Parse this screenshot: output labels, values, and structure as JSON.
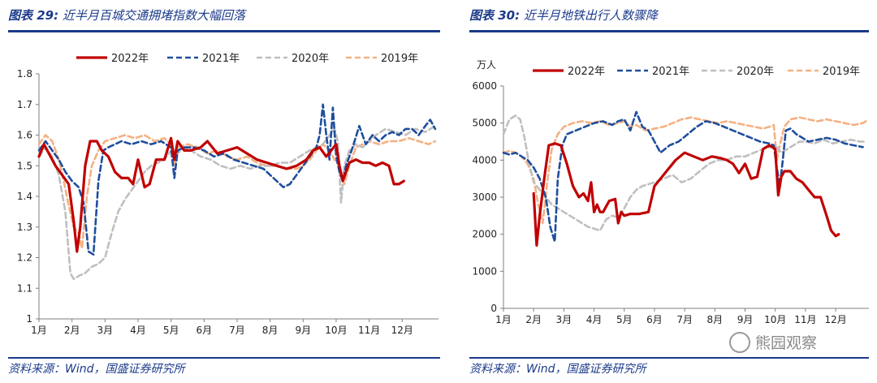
{
  "left": {
    "title_label": "图表 29:",
    "title_text": "近半月百城交通拥堵指数大幅回落",
    "source": "资料来源：Wind，国盛证券研究所",
    "chart_data": {
      "type": "line",
      "title": "近半月百城交通拥堵指数大幅回落",
      "xlabel": "",
      "ylabel": "",
      "ylim": [
        1.0,
        1.8
      ],
      "yticks": [
        "1",
        "1.1",
        "1.2",
        "1.3",
        "1.4",
        "1.5",
        "1.6",
        "1.7",
        "1.8"
      ],
      "ytick_values": [
        1.0,
        1.1,
        1.2,
        1.3,
        1.4,
        1.5,
        1.6,
        1.7,
        1.8
      ],
      "xlim": [
        1,
        13.1
      ],
      "xticks": [
        "1月",
        "2月",
        "3月",
        "4月",
        "5月",
        "6月",
        "7月",
        "8月",
        "9月",
        "10月",
        "11月",
        "12月"
      ],
      "xtick_values": [
        1,
        2,
        3,
        4,
        5,
        6,
        7,
        8,
        9,
        10,
        11,
        12
      ],
      "legend_position": "top",
      "series": [
        {
          "name": "2022年",
          "color": "#c00000",
          "dash": "solid",
          "width": 3.2,
          "x": [
            1.0,
            1.15,
            1.3,
            1.5,
            1.7,
            1.9,
            2.05,
            2.15,
            2.25,
            2.4,
            2.55,
            2.75,
            2.9,
            3.1,
            3.3,
            3.5,
            3.7,
            3.85,
            4.0,
            4.2,
            4.35,
            4.55,
            4.8,
            5.0,
            5.1,
            5.2,
            5.4,
            5.6,
            5.9,
            6.1,
            6.4,
            6.7,
            7.0,
            7.3,
            7.6,
            7.9,
            8.2,
            8.5,
            8.8,
            9.1,
            9.3,
            9.5,
            9.7,
            9.85,
            10.0,
            10.1,
            10.2,
            10.4,
            10.6,
            10.8,
            11.0,
            11.2,
            11.4,
            11.6,
            11.75,
            11.9,
            12.05
          ],
          "values": [
            1.53,
            1.57,
            1.54,
            1.5,
            1.47,
            1.44,
            1.32,
            1.22,
            1.3,
            1.5,
            1.58,
            1.58,
            1.55,
            1.53,
            1.48,
            1.46,
            1.46,
            1.44,
            1.52,
            1.43,
            1.44,
            1.52,
            1.52,
            1.59,
            1.52,
            1.58,
            1.55,
            1.55,
            1.56,
            1.58,
            1.54,
            1.55,
            1.56,
            1.54,
            1.52,
            1.51,
            1.5,
            1.49,
            1.5,
            1.52,
            1.55,
            1.56,
            1.53,
            1.55,
            1.57,
            1.5,
            1.45,
            1.51,
            1.52,
            1.51,
            1.51,
            1.5,
            1.51,
            1.5,
            1.44,
            1.44,
            1.45
          ]
        },
        {
          "name": "2021年",
          "color": "#1f4e9c",
          "dash": "7,4",
          "width": 2.6,
          "x": [
            1.0,
            1.2,
            1.4,
            1.6,
            1.8,
            2.0,
            2.2,
            2.35,
            2.5,
            2.65,
            2.8,
            2.95,
            3.1,
            3.3,
            3.5,
            3.8,
            4.1,
            4.4,
            4.7,
            5.0,
            5.1,
            5.2,
            5.4,
            5.7,
            6.0,
            6.3,
            6.6,
            6.9,
            7.2,
            7.5,
            7.8,
            8.0,
            8.2,
            8.4,
            8.6,
            8.8,
            9.0,
            9.2,
            9.4,
            9.5,
            9.6,
            9.7,
            9.8,
            9.9,
            10.0,
            10.1,
            10.2,
            10.3,
            10.5,
            10.7,
            10.9,
            11.1,
            11.3,
            11.5,
            11.7,
            11.9,
            12.1,
            12.3,
            12.5,
            12.7,
            12.85,
            13.0
          ],
          "values": [
            1.55,
            1.58,
            1.55,
            1.52,
            1.48,
            1.45,
            1.43,
            1.38,
            1.22,
            1.21,
            1.45,
            1.55,
            1.56,
            1.57,
            1.58,
            1.57,
            1.58,
            1.57,
            1.58,
            1.56,
            1.46,
            1.55,
            1.56,
            1.56,
            1.55,
            1.53,
            1.54,
            1.52,
            1.51,
            1.5,
            1.49,
            1.47,
            1.45,
            1.43,
            1.44,
            1.47,
            1.5,
            1.53,
            1.56,
            1.6,
            1.7,
            1.6,
            1.52,
            1.69,
            1.53,
            1.48,
            1.45,
            1.5,
            1.56,
            1.63,
            1.57,
            1.6,
            1.58,
            1.6,
            1.61,
            1.6,
            1.62,
            1.62,
            1.6,
            1.63,
            1.65,
            1.62
          ]
        },
        {
          "name": "2020年",
          "color": "#bfbfbf",
          "dash": "7,4",
          "width": 2.6,
          "x": [
            1.0,
            1.2,
            1.4,
            1.6,
            1.8,
            1.95,
            2.05,
            2.2,
            2.4,
            2.6,
            2.8,
            3.0,
            3.2,
            3.4,
            3.6,
            3.8,
            4.0,
            4.2,
            4.4,
            4.6,
            4.8,
            5.0,
            5.2,
            5.4,
            5.6,
            5.9,
            6.2,
            6.5,
            6.8,
            7.1,
            7.4,
            7.7,
            8.0,
            8.3,
            8.6,
            8.9,
            9.2,
            9.4,
            9.6,
            9.8,
            9.95,
            10.05,
            10.15,
            10.25,
            10.4,
            10.6,
            10.8,
            11.0,
            11.2,
            11.5,
            11.8,
            12.1,
            12.4,
            12.7,
            13.0
          ],
          "values": [
            1.53,
            1.56,
            1.53,
            1.47,
            1.35,
            1.15,
            1.13,
            1.14,
            1.15,
            1.17,
            1.18,
            1.2,
            1.28,
            1.35,
            1.39,
            1.42,
            1.45,
            1.48,
            1.5,
            1.51,
            1.52,
            1.55,
            1.54,
            1.56,
            1.55,
            1.53,
            1.52,
            1.5,
            1.49,
            1.5,
            1.49,
            1.5,
            1.5,
            1.51,
            1.51,
            1.53,
            1.55,
            1.56,
            1.57,
            1.6,
            1.62,
            1.58,
            1.38,
            1.5,
            1.55,
            1.57,
            1.56,
            1.58,
            1.6,
            1.62,
            1.61,
            1.6,
            1.62,
            1.61,
            1.63
          ]
        },
        {
          "name": "2019年",
          "color": "#f4b183",
          "dash": "7,4",
          "width": 2.6,
          "x": [
            1.0,
            1.2,
            1.4,
            1.6,
            1.75,
            1.9,
            2.05,
            2.2,
            2.3,
            2.45,
            2.6,
            2.8,
            3.0,
            3.3,
            3.6,
            3.9,
            4.2,
            4.5,
            4.8,
            5.0,
            5.1,
            5.2,
            5.5,
            5.8,
            6.1,
            6.4,
            6.7,
            7.0,
            7.3,
            7.6,
            7.9,
            8.2,
            8.5,
            8.8,
            9.0,
            9.2,
            9.4,
            9.6,
            9.8,
            9.95,
            10.1,
            10.25,
            10.4,
            10.6,
            10.8,
            11.0,
            11.3,
            11.6,
            11.9,
            12.2,
            12.5,
            12.8,
            13.0
          ],
          "values": [
            1.57,
            1.6,
            1.58,
            1.52,
            1.45,
            1.37,
            1.3,
            1.28,
            1.23,
            1.4,
            1.5,
            1.55,
            1.58,
            1.59,
            1.6,
            1.59,
            1.6,
            1.58,
            1.59,
            1.57,
            1.5,
            1.56,
            1.57,
            1.56,
            1.54,
            1.55,
            1.53,
            1.52,
            1.53,
            1.51,
            1.5,
            1.5,
            1.49,
            1.49,
            1.5,
            1.52,
            1.55,
            1.57,
            1.55,
            1.52,
            1.5,
            1.44,
            1.5,
            1.56,
            1.57,
            1.58,
            1.57,
            1.58,
            1.58,
            1.59,
            1.58,
            1.57,
            1.58
          ]
        }
      ]
    }
  },
  "right": {
    "title_label": "图表 30:",
    "title_text": "近半月地铁出行人数骤降",
    "source": "资料来源：Wind，国盛证券研究所",
    "chart_data": {
      "type": "line",
      "title": "近半月地铁出行人数骤降",
      "xlabel": "",
      "ylabel": "万人",
      "ylim": [
        0,
        6000
      ],
      "yticks": [
        "0",
        "1000",
        "2000",
        "3000",
        "4000",
        "5000",
        "6000"
      ],
      "ytick_values": [
        0,
        1000,
        2000,
        3000,
        4000,
        5000,
        6000
      ],
      "xlim": [
        1,
        13.1
      ],
      "xticks": [
        "1月",
        "2月",
        "3月",
        "4月",
        "5月",
        "6月",
        "7月",
        "8月",
        "9月",
        "10月",
        "11月",
        "12月"
      ],
      "xtick_values": [
        1,
        2,
        3,
        4,
        5,
        6,
        7,
        8,
        9,
        10,
        11,
        12
      ],
      "legend_position": "top",
      "series": [
        {
          "name": "2022年",
          "color": "#c00000",
          "dash": "solid",
          "width": 3.2,
          "x": [
            2.0,
            2.1,
            2.2,
            2.35,
            2.5,
            2.7,
            2.9,
            3.1,
            3.3,
            3.5,
            3.65,
            3.8,
            3.9,
            4.0,
            4.1,
            4.2,
            4.3,
            4.5,
            4.7,
            4.8,
            4.9,
            5.0,
            5.2,
            5.5,
            5.8,
            6.0,
            6.2,
            6.4,
            6.7,
            7.0,
            7.3,
            7.6,
            7.9,
            8.2,
            8.4,
            8.6,
            8.8,
            9.0,
            9.2,
            9.4,
            9.6,
            9.8,
            10.0,
            10.1,
            10.2,
            10.3,
            10.5,
            10.7,
            10.9,
            11.1,
            11.3,
            11.5,
            11.7,
            11.85,
            12.0,
            12.1
          ],
          "values": [
            3100,
            1700,
            2500,
            3500,
            4400,
            4450,
            4400,
            3900,
            3300,
            3000,
            3100,
            2900,
            3400,
            2600,
            2800,
            2600,
            2600,
            2900,
            2950,
            2300,
            2600,
            2500,
            2550,
            2550,
            2600,
            3300,
            3500,
            3700,
            4000,
            4200,
            4100,
            4000,
            4100,
            4050,
            4000,
            3900,
            3650,
            3900,
            3500,
            3550,
            4300,
            4400,
            4300,
            3050,
            3550,
            3700,
            3700,
            3500,
            3400,
            3200,
            3000,
            3000,
            2500,
            2100,
            1950,
            2000
          ]
        },
        {
          "name": "2021年",
          "color": "#1f4e9c",
          "dash": "7,4",
          "width": 2.6,
          "x": [
            1.0,
            1.2,
            1.4,
            1.6,
            1.8,
            2.0,
            2.2,
            2.4,
            2.55,
            2.7,
            2.8,
            2.95,
            3.1,
            3.4,
            3.7,
            4.0,
            4.3,
            4.6,
            4.8,
            5.0,
            5.2,
            5.4,
            5.6,
            5.8,
            6.0,
            6.2,
            6.5,
            6.8,
            7.1,
            7.4,
            7.7,
            8.0,
            8.3,
            8.6,
            8.9,
            9.2,
            9.5,
            9.8,
            9.95,
            10.05,
            10.15,
            10.25,
            10.35,
            10.5,
            10.7,
            10.9,
            11.1,
            11.4,
            11.7,
            12.0,
            12.3,
            12.6,
            12.9
          ],
          "values": [
            4200,
            4150,
            4200,
            4100,
            4000,
            3800,
            3500,
            3000,
            2200,
            1800,
            3500,
            4400,
            4700,
            4800,
            4900,
            5000,
            5050,
            4950,
            5050,
            5100,
            4800,
            5300,
            4900,
            4800,
            4500,
            4200,
            4400,
            4500,
            4700,
            4900,
            5050,
            5000,
            4900,
            4800,
            4700,
            4600,
            4500,
            4450,
            4400,
            3800,
            3300,
            4000,
            4800,
            4850,
            4700,
            4600,
            4500,
            4550,
            4600,
            4550,
            4450,
            4400,
            4350
          ]
        },
        {
          "name": "2020年",
          "color": "#bfbfbf",
          "dash": "7,4",
          "width": 2.6,
          "x": [
            1.0,
            1.2,
            1.4,
            1.55,
            1.7,
            1.85,
            2.0,
            2.2,
            2.4,
            2.6,
            2.8,
            3.0,
            3.2,
            3.4,
            3.6,
            3.8,
            4.0,
            4.2,
            4.4,
            4.6,
            4.8,
            5.0,
            5.2,
            5.4,
            5.6,
            5.8,
            6.0,
            6.3,
            6.6,
            6.9,
            7.2,
            7.5,
            7.8,
            8.1,
            8.4,
            8.7,
            9.0,
            9.3,
            9.6,
            9.8,
            10.0,
            10.2,
            10.4,
            10.6,
            10.8,
            11.0,
            11.3,
            11.6,
            11.9,
            12.2,
            12.5,
            12.8,
            13.0
          ],
          "values": [
            4700,
            5100,
            5200,
            5100,
            4600,
            3900,
            3400,
            3200,
            3000,
            2800,
            2700,
            2600,
            2500,
            2400,
            2300,
            2200,
            2150,
            2100,
            2400,
            2500,
            2450,
            2700,
            3000,
            3200,
            3300,
            3350,
            3400,
            3500,
            3600,
            3400,
            3500,
            3700,
            3900,
            4000,
            4000,
            4100,
            4100,
            4200,
            4300,
            4350,
            4400,
            4200,
            4300,
            4400,
            4500,
            4500,
            4450,
            4550,
            4450,
            4500,
            4550,
            4500,
            4500
          ]
        },
        {
          "name": "2019年",
          "color": "#f4b183",
          "dash": "7,4",
          "width": 2.6,
          "x": [
            1.0,
            1.2,
            1.4,
            1.6,
            1.8,
            2.0,
            2.15,
            2.3,
            2.45,
            2.6,
            2.8,
            3.0,
            3.3,
            3.6,
            3.9,
            4.2,
            4.5,
            4.8,
            5.0,
            5.2,
            5.4,
            5.7,
            6.0,
            6.3,
            6.6,
            6.9,
            7.2,
            7.5,
            7.8,
            8.1,
            8.4,
            8.7,
            9.0,
            9.3,
            9.6,
            9.8,
            9.95,
            10.05,
            10.15,
            10.3,
            10.5,
            10.8,
            11.1,
            11.4,
            11.7,
            12.0,
            12.3,
            12.6,
            12.9,
            13.0
          ],
          "values": [
            4200,
            4250,
            4200,
            4100,
            3900,
            3500,
            2800,
            2300,
            3400,
            4300,
            4700,
            4900,
            5000,
            5050,
            5000,
            5050,
            4950,
            5000,
            5050,
            4900,
            4950,
            4800,
            4850,
            4900,
            5000,
            5100,
            5150,
            5100,
            5050,
            5000,
            5050,
            5000,
            4950,
            4900,
            4850,
            4900,
            4950,
            4000,
            4400,
            4900,
            5100,
            5150,
            5100,
            5050,
            5100,
            5050,
            5000,
            4950,
            5000,
            5050
          ]
        }
      ]
    }
  },
  "watermark": "熊园观察"
}
